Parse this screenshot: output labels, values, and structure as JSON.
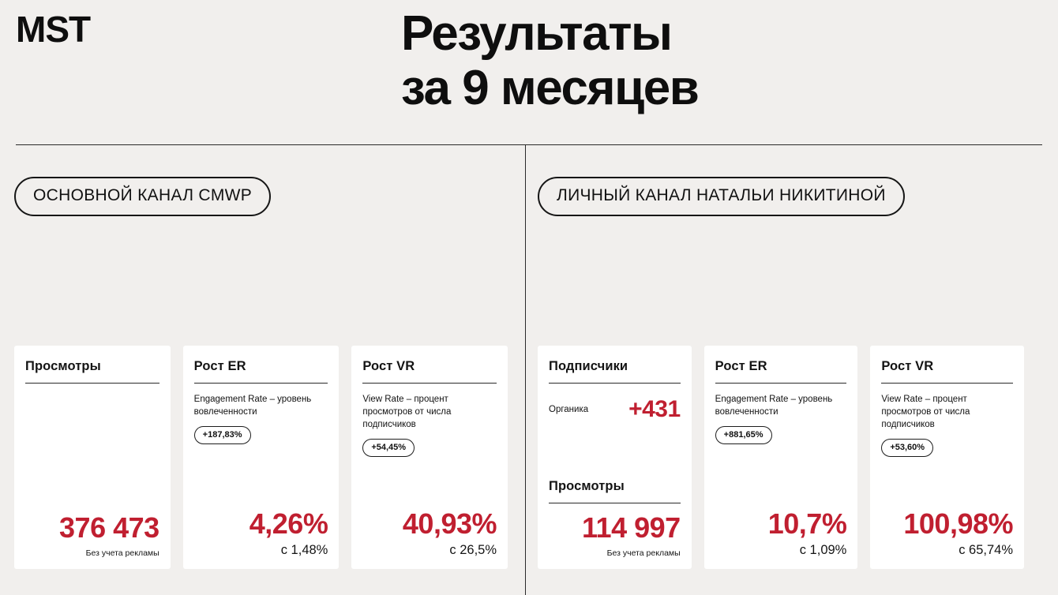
{
  "logo": "MST",
  "title": {
    "line1": "Результаты",
    "line2": "за 9 месяцев"
  },
  "colors": {
    "accent": "#c01f30",
    "background": "#f1efed",
    "card": "#ffffff"
  },
  "sections": [
    {
      "badge": "ОСНОВНОЙ КАНАЛ CMWP",
      "cards": [
        {
          "title": "Просмотры",
          "value": "376 473",
          "note": "Без учета рекламы"
        },
        {
          "title": "Рост ER",
          "description": "Engagement Rate – уровень вовлеченности",
          "pill": "+187,83%",
          "value": "4,26%",
          "note": "с 1,48%"
        },
        {
          "title": "Рост VR",
          "description": "View Rate – процент просмотров от числа подписчиков",
          "pill": "+54,45%",
          "value": "40,93%",
          "note": "с 26,5%"
        }
      ]
    },
    {
      "badge": "ЛИЧНЫЙ КАНАЛ НАТАЛЬИ НИКИТИНОЙ",
      "cards": [
        {
          "title": "Подписчики",
          "sub_label": "Органика",
          "sub_value": "+431",
          "title2": "Просмотры",
          "value": "114 997",
          "note": "Без учета рекламы"
        },
        {
          "title": "Рост ER",
          "description": "Engagement Rate – уровень вовлеченности",
          "pill": "+881,65%",
          "value": "10,7%",
          "note": "с 1,09%"
        },
        {
          "title": "Рост VR",
          "description": "View Rate – процент просмотров от числа подписчиков",
          "pill": "+53,60%",
          "value": "100,98%",
          "note": "с 65,74%"
        }
      ]
    }
  ]
}
